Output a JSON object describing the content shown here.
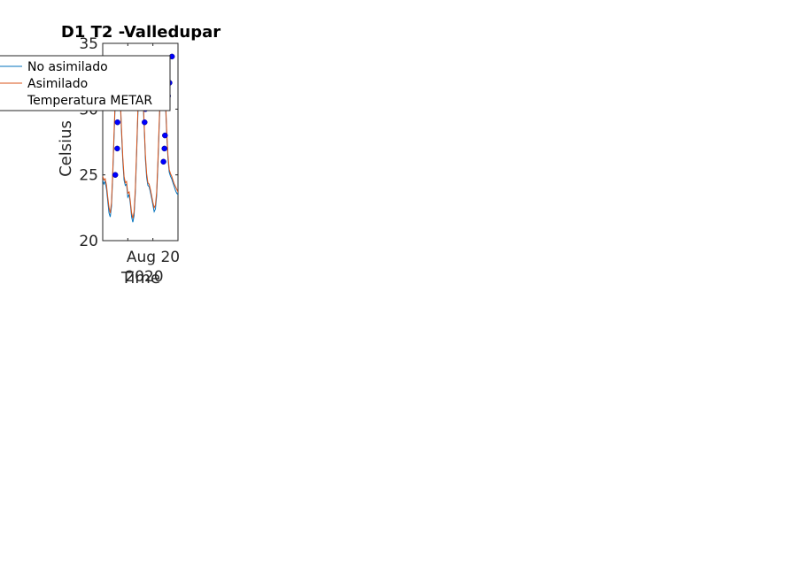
{
  "chart_data": {
    "type": "line",
    "title": "D1 T2  -Valledupar",
    "xlabel": "Time",
    "ylabel": "Celsius",
    "x_tick_label": "Aug 20",
    "x_secondary_label": "2020",
    "ylim": [
      20,
      35
    ],
    "yticks": [
      20,
      25,
      30,
      35
    ],
    "xlim_days": [
      0,
      3
    ],
    "grid": false,
    "legend_position": "top-left",
    "series": [
      {
        "name": "No asimilado",
        "color": "#0072bd",
        "x": [
          0.0,
          0.05,
          0.1,
          0.15,
          0.2,
          0.25,
          0.3,
          0.35,
          0.4,
          0.45,
          0.5,
          0.55,
          0.6,
          0.65,
          0.7,
          0.75,
          0.8,
          0.85,
          0.9,
          0.95,
          1.0,
          1.05,
          1.1,
          1.15,
          1.2,
          1.25,
          1.3,
          1.35,
          1.4,
          1.45,
          1.5,
          1.55,
          1.6,
          1.65,
          1.7,
          1.75,
          1.8,
          1.85,
          1.9,
          1.95,
          2.0,
          2.05,
          2.1,
          2.15,
          2.2,
          2.25,
          2.3,
          2.35,
          2.4,
          2.45,
          2.5,
          2.55,
          2.6,
          2.65,
          2.7,
          2.75,
          2.8,
          2.85,
          2.9,
          2.95,
          3.0
        ],
        "values": [
          24.6,
          24.3,
          24.5,
          23.9,
          23.0,
          22.1,
          21.8,
          22.6,
          24.9,
          27.9,
          30.6,
          32.4,
          33.0,
          32.3,
          30.6,
          28.1,
          26.0,
          24.6,
          24.2,
          24.3,
          23.3,
          23.5,
          22.8,
          21.8,
          21.4,
          21.9,
          23.6,
          26.6,
          29.6,
          31.9,
          33.0,
          32.5,
          31.1,
          28.7,
          26.2,
          24.8,
          24.2,
          24.1,
          23.7,
          23.2,
          22.7,
          22.2,
          22.4,
          23.4,
          25.7,
          28.7,
          31.3,
          32.9,
          33.4,
          32.6,
          30.6,
          28.0,
          26.2,
          25.2,
          24.9,
          24.7,
          24.4,
          24.1,
          23.8,
          23.6,
          23.5
        ]
      },
      {
        "name": "Asimilado",
        "color": "#d95319",
        "x": [
          0.0,
          0.05,
          0.1,
          0.15,
          0.2,
          0.25,
          0.3,
          0.35,
          0.4,
          0.45,
          0.5,
          0.55,
          0.6,
          0.65,
          0.7,
          0.75,
          0.8,
          0.85,
          0.9,
          0.95,
          1.0,
          1.05,
          1.1,
          1.15,
          1.2,
          1.25,
          1.3,
          1.35,
          1.4,
          1.45,
          1.5,
          1.55,
          1.6,
          1.65,
          1.7,
          1.75,
          1.8,
          1.85,
          1.9,
          1.95,
          2.0,
          2.05,
          2.1,
          2.15,
          2.2,
          2.25,
          2.3,
          2.35,
          2.4,
          2.45,
          2.5,
          2.55,
          2.6,
          2.65,
          2.7,
          2.75,
          2.8,
          2.85,
          2.9,
          2.95,
          3.0
        ],
        "values": [
          24.9,
          24.6,
          24.7,
          24.2,
          23.3,
          22.5,
          22.1,
          22.9,
          25.2,
          28.2,
          30.9,
          32.7,
          33.2,
          32.5,
          30.9,
          28.4,
          26.3,
          24.9,
          24.4,
          24.5,
          23.6,
          23.7,
          23.0,
          22.1,
          21.7,
          22.2,
          23.9,
          26.9,
          29.9,
          32.1,
          33.2,
          32.8,
          31.3,
          28.9,
          26.5,
          25.1,
          24.4,
          24.3,
          23.9,
          23.4,
          22.9,
          22.5,
          22.7,
          23.7,
          26.0,
          29.0,
          31.6,
          33.1,
          33.6,
          32.9,
          30.9,
          28.3,
          26.5,
          25.4,
          25.1,
          24.9,
          24.6,
          24.3,
          24.1,
          23.9,
          23.7
        ]
      },
      {
        "name": "Temperatura METAR",
        "color": "#0000ff",
        "marker": "circle",
        "x": [
          0.5,
          0.58,
          0.59,
          1.67,
          1.7,
          2.42,
          2.46,
          2.48,
          2.6,
          2.66,
          2.76
        ],
        "values": [
          25.0,
          27.0,
          29.0,
          29.0,
          30.0,
          26.0,
          27.0,
          28.0,
          31.0,
          32.0,
          34.0
        ]
      }
    ]
  }
}
